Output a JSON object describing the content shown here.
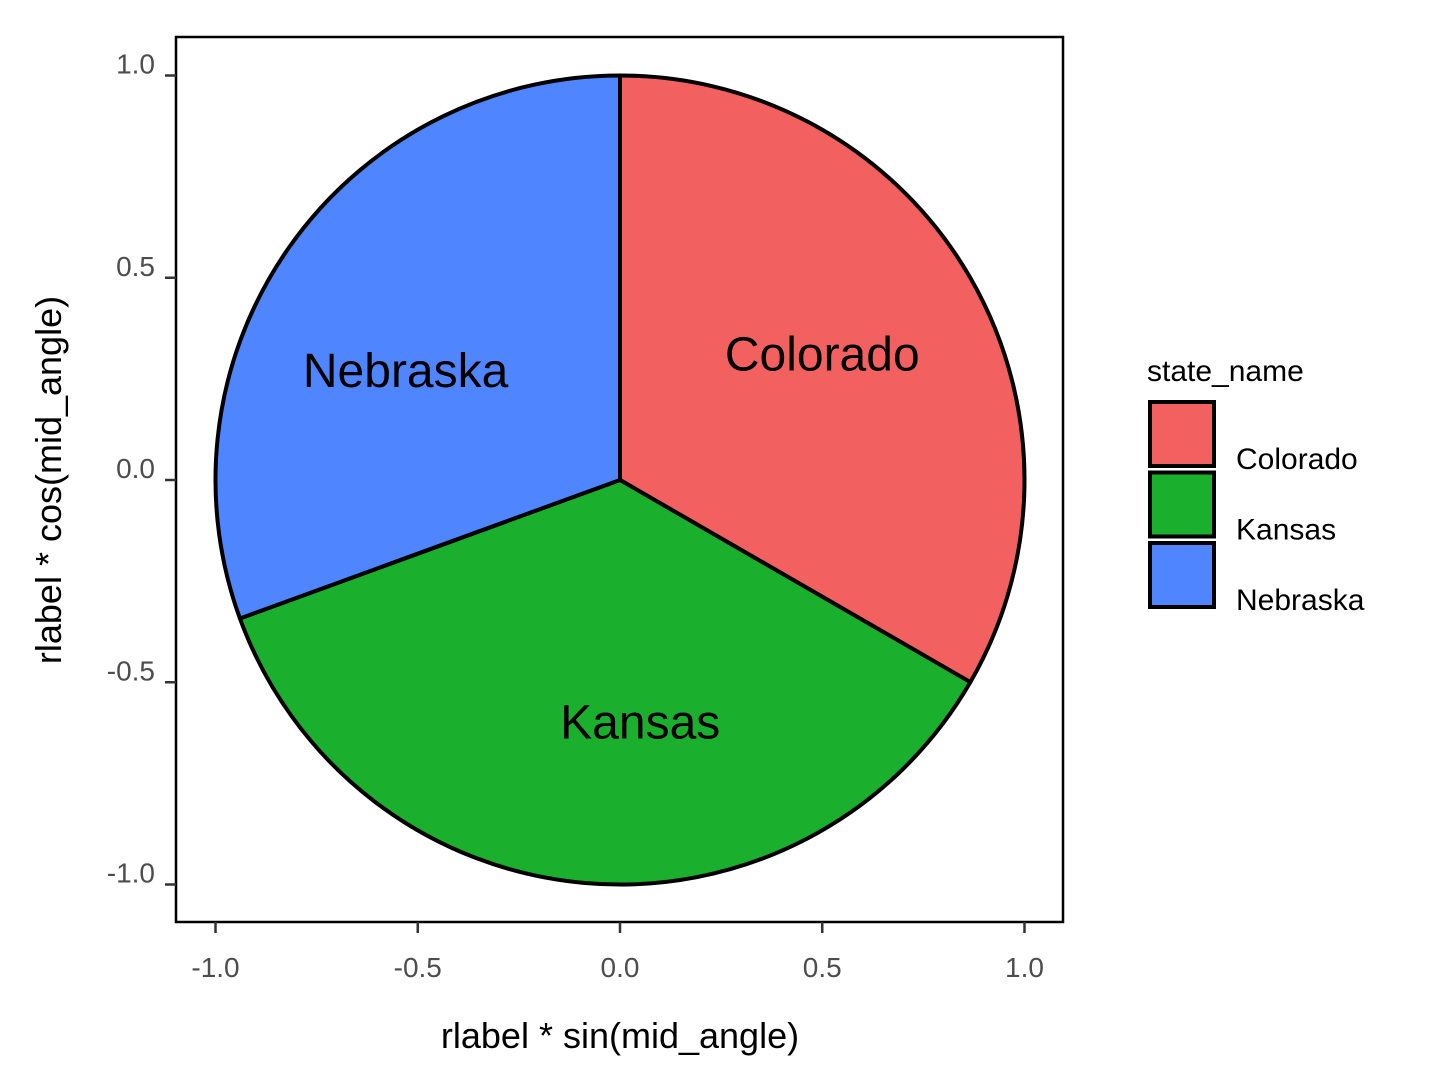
{
  "chart_data": {
    "type": "pie",
    "title": "",
    "xlabel": "rlabel * sin(mid_angle)",
    "ylabel": "rlabel * cos(mid_angle)",
    "xlim": [
      -1.1,
      1.1
    ],
    "ylim": [
      -1.1,
      1.1
    ],
    "x_ticks": [
      -1.0,
      -0.5,
      0.0,
      0.5,
      1.0
    ],
    "x_tick_labels": [
      "-1.0",
      "-0.5",
      "0.0",
      "0.5",
      "1.0"
    ],
    "y_ticks": [
      -1.0,
      -0.5,
      0.0,
      0.5,
      1.0
    ],
    "y_tick_labels": [
      "-1.0",
      "-0.5",
      "0.0",
      "0.5",
      "1.0"
    ],
    "grid": false,
    "legend_title": "state_name",
    "legend_position": "right",
    "slices": [
      {
        "label": "Colorado",
        "share": 0.3333,
        "color": "#F26160",
        "label_x": 0.5,
        "label_y": 0.31
      },
      {
        "label": "Kansas",
        "share": 0.3611,
        "color": "#1BAF2E",
        "label_x": 0.05,
        "label_y": -0.6
      },
      {
        "label": "Nebraska",
        "share": 0.3056,
        "color": "#4F86FF",
        "label_x": -0.53,
        "label_y": 0.27
      }
    ],
    "slice_order": "clockwise from 12 o'clock"
  }
}
